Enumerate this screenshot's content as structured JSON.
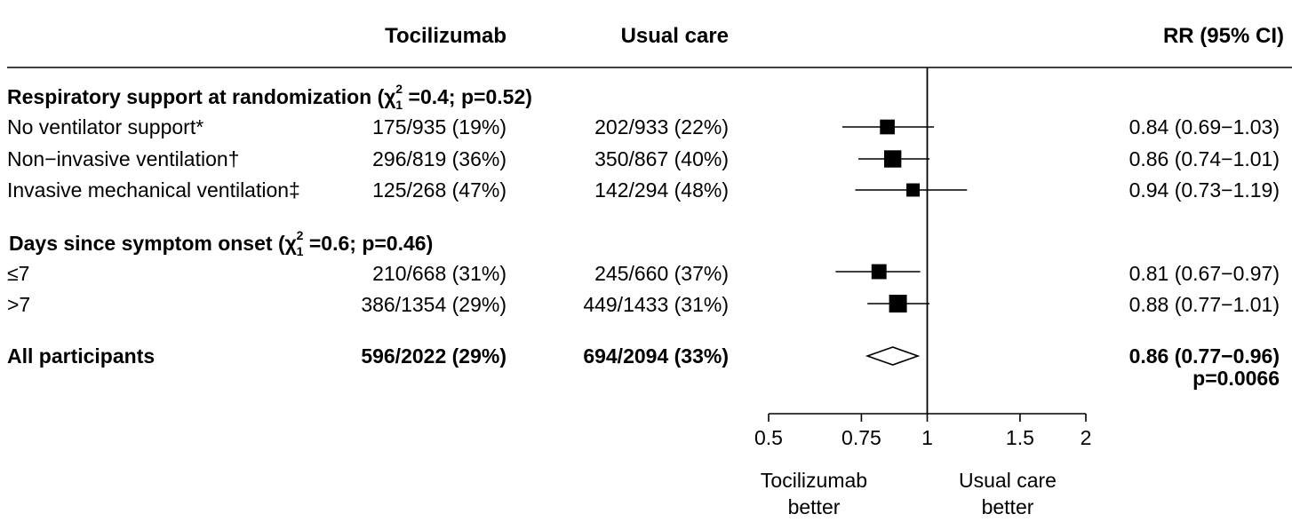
{
  "chart_data": {
    "type": "forest",
    "x_scale": "log",
    "x_ticks": [
      0.5,
      0.75,
      1,
      1.5,
      2
    ],
    "x_tick_labels": [
      "0.5",
      "0.75",
      "1",
      "1.5",
      "2"
    ],
    "xlim": [
      0.5,
      2
    ],
    "reference_line": 1,
    "columns": {
      "treatment": "Tocilizumab",
      "control": "Usual care",
      "estimate": "RR (95% CI)"
    },
    "x_direction_labels": {
      "left": [
        "Tocilizumab",
        "better"
      ],
      "right": [
        "Usual care",
        "better"
      ]
    },
    "groups": [
      {
        "title": "Respiratory support at randomization",
        "het_stat": "=0.4; p=0.52",
        "rows": [
          {
            "label": "No ventilator support*",
            "treatment": "175/935 (19%)",
            "control": "202/933 (22%)",
            "rr_text": "0.84 (0.69−1.03)",
            "rr": 0.84,
            "lo": 0.69,
            "hi": 1.03,
            "weight": 0.72
          },
          {
            "label": "Non−invasive ventilation†",
            "treatment": "296/819 (36%)",
            "control": "350/867 (40%)",
            "rr_text": "0.86 (0.74−1.01)",
            "rr": 0.86,
            "lo": 0.74,
            "hi": 1.01,
            "weight": 0.95
          },
          {
            "label": "Invasive mechanical ventilation‡",
            "treatment": "125/268 (47%)",
            "control": "142/294 (48%)",
            "rr_text": "0.94 (0.73−1.19)",
            "rr": 0.94,
            "lo": 0.73,
            "hi": 1.19,
            "weight": 0.58
          }
        ]
      },
      {
        "title": "Days since symptom onset",
        "het_stat": "=0.6; p=0.46",
        "rows": [
          {
            "label": "≤7",
            "treatment": "210/668 (31%)",
            "control": "245/660 (37%)",
            "rr_text": "0.81 (0.67−0.97)",
            "rr": 0.81,
            "lo": 0.67,
            "hi": 0.97,
            "weight": 0.74
          },
          {
            "label": ">7",
            "treatment": "386/1354 (29%)",
            "control": "449/1433 (31%)",
            "rr_text": "0.88 (0.77−1.01)",
            "rr": 0.88,
            "lo": 0.77,
            "hi": 1.01,
            "weight": 1.0
          }
        ]
      }
    ],
    "overall": {
      "label": "All participants",
      "treatment": "596/2022 (29%)",
      "control": "694/2094 (33%)",
      "rr_text": "0.86 (0.77−0.96)",
      "p_text": "p=0.0066",
      "rr": 0.86,
      "lo": 0.77,
      "hi": 0.96
    }
  }
}
